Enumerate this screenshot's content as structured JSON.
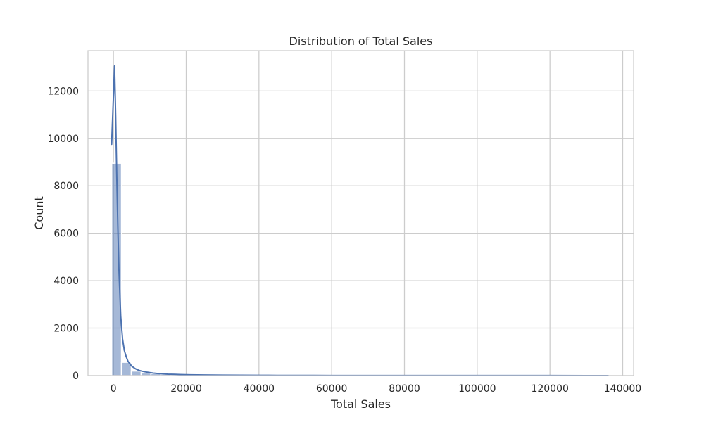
{
  "chart_data": {
    "type": "bar",
    "title": "Distribution of Total Sales",
    "xlabel": "Total Sales",
    "ylabel": "Count",
    "xlim": [
      -7000,
      143000
    ],
    "ylim": [
      0,
      13700
    ],
    "x_ticks": [
      0,
      20000,
      40000,
      60000,
      80000,
      100000,
      120000,
      140000
    ],
    "y_ticks": [
      0,
      2000,
      4000,
      6000,
      8000,
      10000,
      12000
    ],
    "grid": true,
    "bar_color": "#4c72b0",
    "line_color": "#4c72b0",
    "histogram": {
      "bin_edges": [
        -500,
        2200,
        4900,
        7600,
        10300,
        13000,
        15700,
        18400,
        21100,
        23800,
        26500,
        29200,
        31900,
        34600,
        37300,
        40000,
        42700,
        45400,
        48100,
        50800,
        53500,
        56200,
        58900,
        61600,
        64300,
        67000,
        69700,
        72400,
        75100,
        77800,
        80500,
        83200,
        85900,
        88600,
        91300,
        94000,
        96700,
        99400,
        102100,
        104800,
        107500,
        110200,
        112900,
        115600,
        118300,
        121000,
        123700,
        126400,
        129100,
        131800,
        134500
      ],
      "counts": [
        8950,
        560,
        190,
        110,
        80,
        60,
        40,
        30,
        25,
        20,
        15,
        12,
        10,
        8,
        6,
        5,
        4,
        4,
        3,
        3,
        2,
        2,
        2,
        2,
        1,
        1,
        1,
        1,
        1,
        1,
        1,
        1,
        1,
        1,
        1,
        1,
        1,
        1,
        1,
        1,
        1,
        1,
        1,
        1,
        1,
        1,
        1,
        1,
        1,
        1
      ]
    },
    "kde": {
      "x": [
        -500,
        0,
        300,
        600,
        900,
        1200,
        1500,
        2000,
        2500,
        3000,
        3500,
        4000,
        5000,
        6000,
        7000,
        8000,
        9000,
        10000,
        11000,
        12000,
        13000,
        14000,
        15000,
        17000,
        19000,
        21000,
        23000,
        25000,
        30000,
        35000,
        40000,
        45000,
        50000,
        55000,
        60000,
        70000,
        80000,
        90000,
        100000,
        110000,
        120000,
        130000,
        136000
      ],
      "y": [
        9750,
        11800,
        13050,
        11000,
        8500,
        6300,
        4500,
        2500,
        1550,
        1050,
        800,
        600,
        400,
        290,
        220,
        180,
        150,
        125,
        105,
        90,
        80,
        70,
        60,
        50,
        40,
        35,
        30,
        25,
        18,
        14,
        11,
        9,
        7,
        6,
        5,
        4,
        3,
        3,
        2,
        2,
        2,
        1,
        1
      ]
    }
  }
}
